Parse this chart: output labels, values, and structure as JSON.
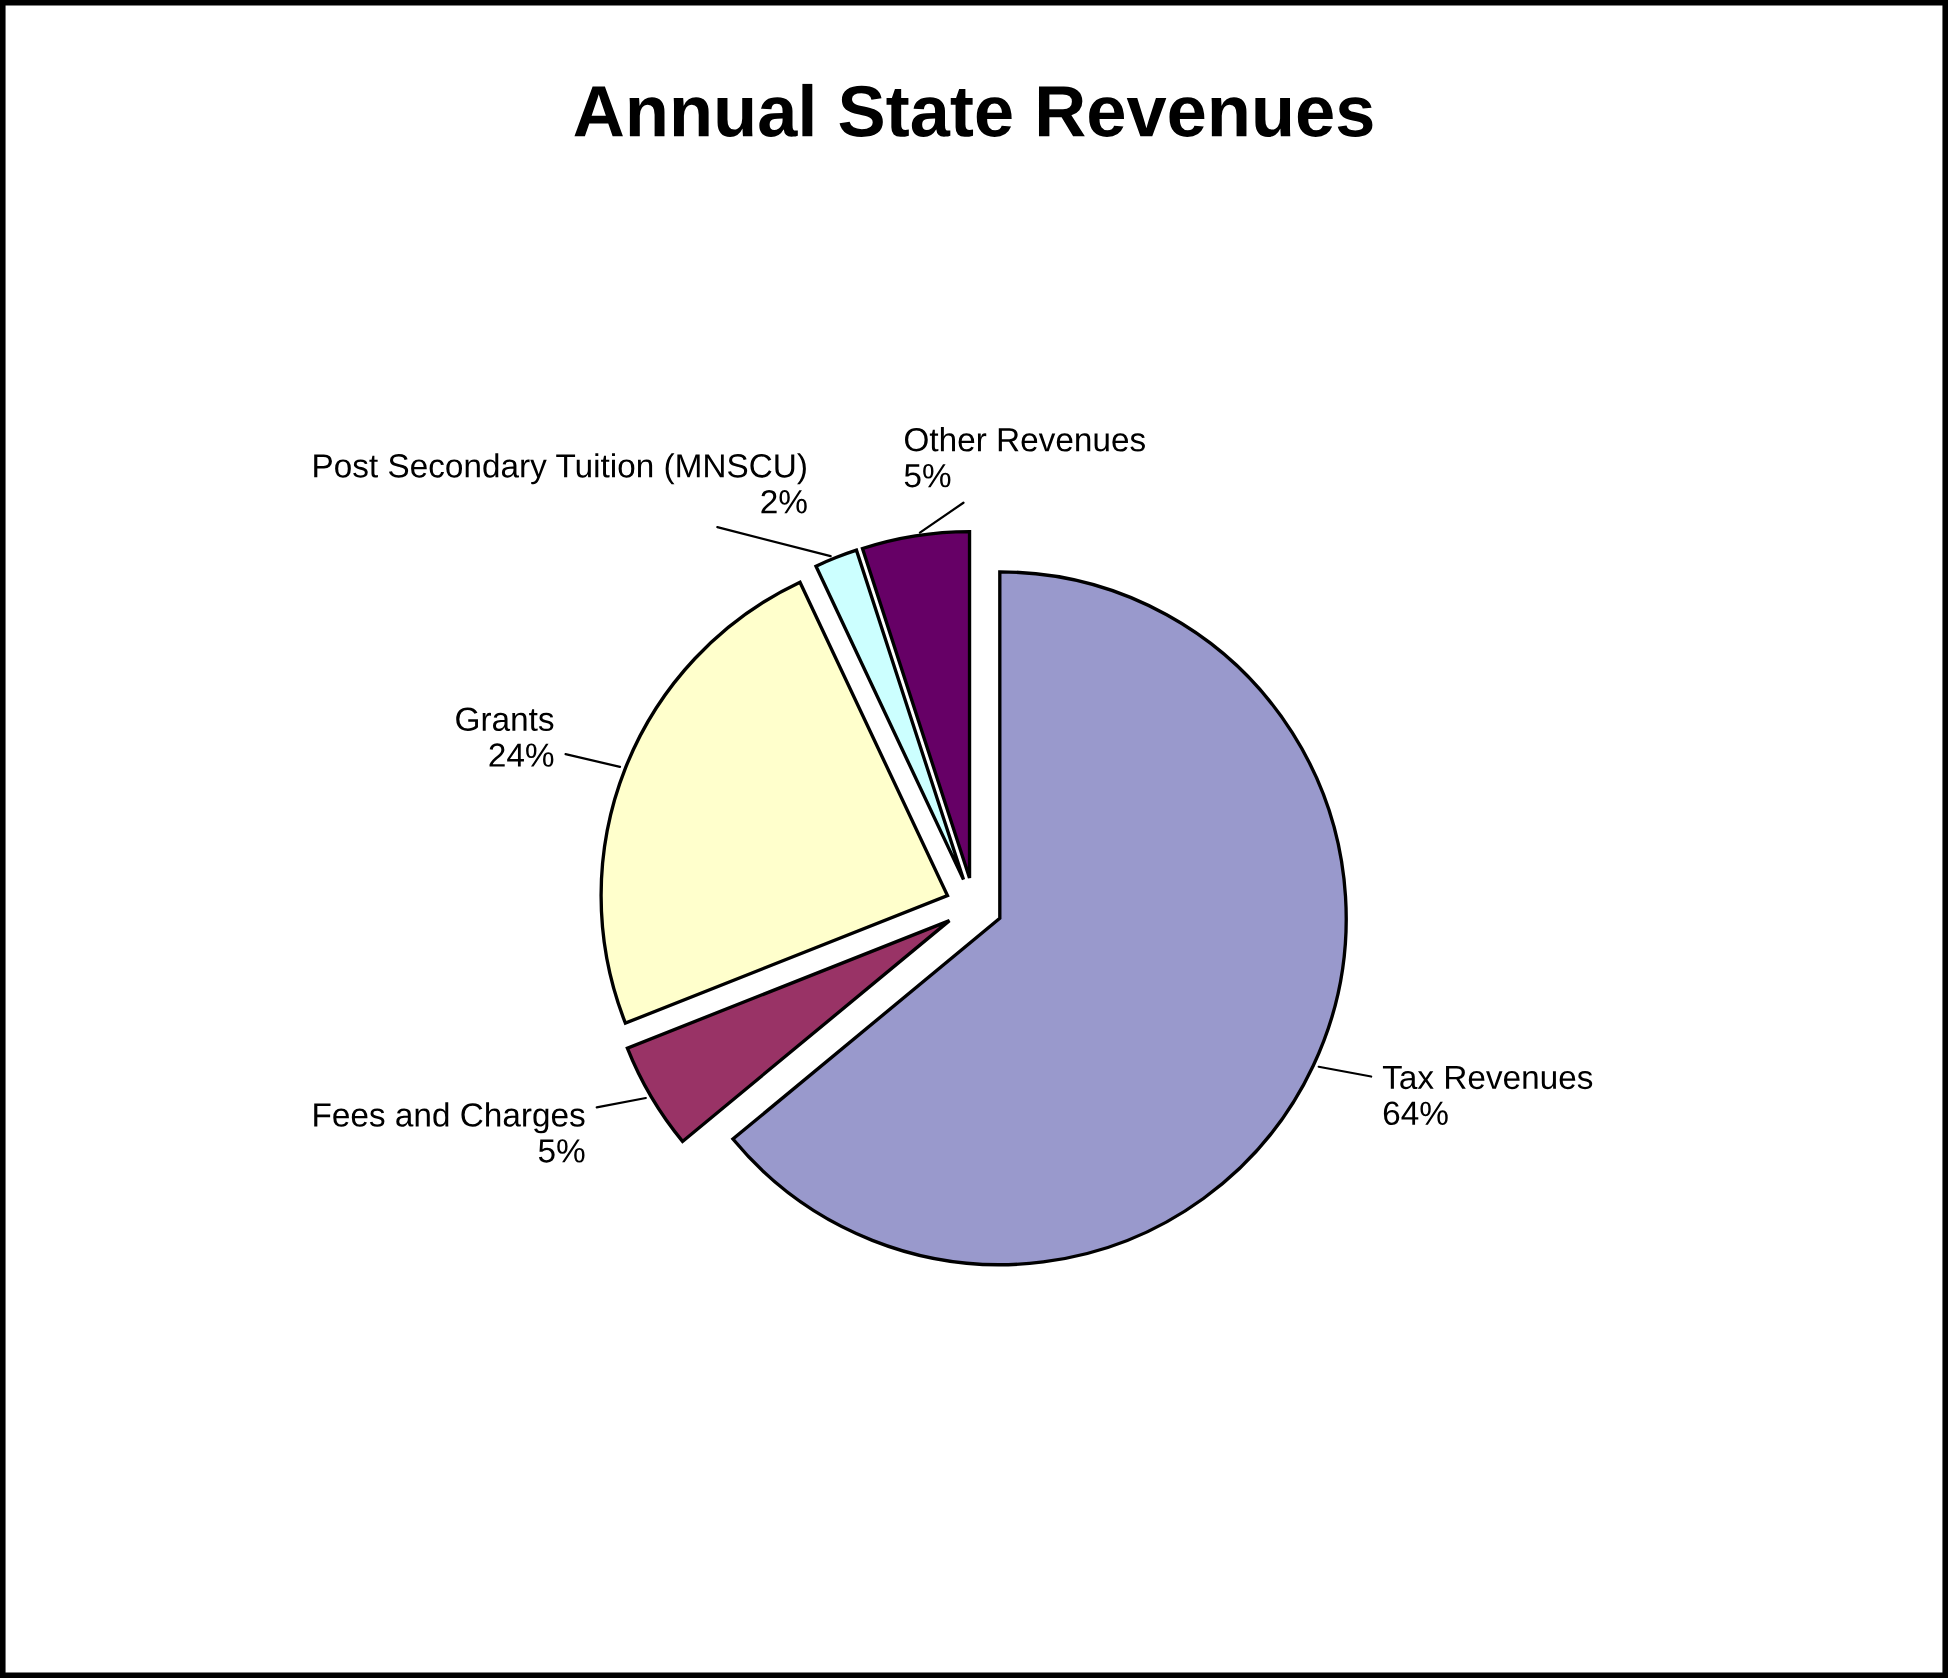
{
  "chart_data": {
    "type": "pie",
    "title": "Annual State Revenues",
    "categories": [
      "Tax Revenues",
      "Fees and Charges",
      "Grants",
      "Post Secondary Tuition (MNSCU)",
      "Other Revenues"
    ],
    "values": [
      64,
      5,
      24,
      2,
      5
    ],
    "value_labels": [
      "64%",
      "5%",
      "24%",
      "2%",
      "5%"
    ],
    "colors": [
      "#9999cc",
      "#993366",
      "#ffffcc",
      "#ccffff",
      "#660066"
    ]
  }
}
